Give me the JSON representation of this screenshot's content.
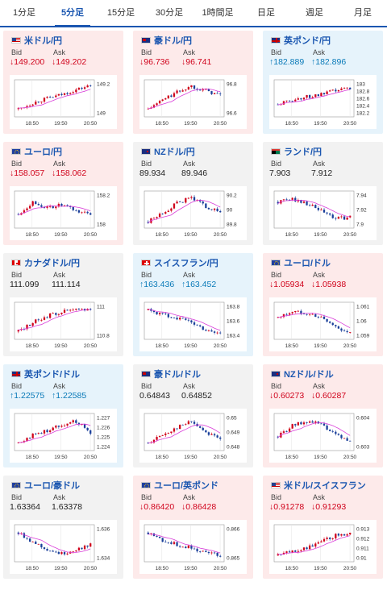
{
  "tabs": [
    {
      "label": "1分足",
      "active": false
    },
    {
      "label": "5分足",
      "active": true
    },
    {
      "label": "15分足",
      "active": false
    },
    {
      "label": "30分足",
      "active": false
    },
    {
      "label": "1時間足",
      "active": false
    },
    {
      "label": "日足",
      "active": false
    },
    {
      "label": "週足",
      "active": false
    },
    {
      "label": "月足",
      "active": false
    }
  ],
  "labels": {
    "bid": "Bid",
    "ask": "Ask"
  },
  "colors": {
    "up_candle": "#d0021b",
    "down_candle": "#1a3f9a",
    "ma_line": "#d93dd9",
    "up_text": "#0a7ab8",
    "down_text": "#d0021b"
  },
  "pairs": [
    {
      "name": "米ドル/円",
      "flag": "us-jp",
      "dir": "down",
      "bid": "149.200",
      "ask": "149.202",
      "bid_arrow": "↓",
      "ask_arrow": "↓",
      "y_ticks": [
        "149.2",
        "149"
      ],
      "x_ticks": [
        "18:50",
        "19:50",
        "20:50"
      ],
      "trend": [
        0.15,
        0.35,
        0.5,
        0.62,
        0.78,
        0.92
      ]
    },
    {
      "name": "豪ドル/円",
      "flag": "au-jp",
      "dir": "down",
      "bid": "96.736",
      "ask": "96.741",
      "bid_arrow": "↓",
      "ask_arrow": "↓",
      "y_ticks": [
        "96.8",
        "96.6"
      ],
      "x_ticks": [
        "18:50",
        "19:50",
        "20:50"
      ],
      "trend": [
        0.15,
        0.45,
        0.7,
        0.9,
        0.75,
        0.6
      ]
    },
    {
      "name": "英ポンド/円",
      "flag": "gb-jp",
      "dir": "up",
      "bid": "182.889",
      "ask": "182.896",
      "bid_arrow": "↑",
      "ask_arrow": "↑",
      "y_ticks": [
        "183",
        "182.8",
        "182.6",
        "182.4",
        "182.2"
      ],
      "x_ticks": [
        "18:50",
        "19:50",
        "20:50"
      ],
      "trend": [
        0.3,
        0.45,
        0.55,
        0.62,
        0.75,
        0.85
      ]
    },
    {
      "name": "ユーロ/円",
      "flag": "eu-jp",
      "dir": "down",
      "bid": "158.057",
      "ask": "158.062",
      "bid_arrow": "↓",
      "ask_arrow": "↓",
      "y_ticks": [
        "158.2",
        "158"
      ],
      "x_ticks": [
        "18:50",
        "19:50",
        "20:50"
      ],
      "trend": [
        0.35,
        0.75,
        0.55,
        0.65,
        0.45,
        0.35
      ]
    },
    {
      "name": "NZドル/円",
      "flag": "nz-jp",
      "dir": "flat",
      "bid": "89.934",
      "ask": "89.946",
      "bid_arrow": "",
      "ask_arrow": "",
      "y_ticks": [
        "90.2",
        "90",
        "89.8"
      ],
      "x_ticks": [
        "18:50",
        "19:50",
        "20:50"
      ],
      "trend": [
        0.1,
        0.4,
        0.7,
        0.9,
        0.6,
        0.4
      ]
    },
    {
      "name": "ランド/円",
      "flag": "za-jp",
      "dir": "flat",
      "bid": "7.903",
      "ask": "7.912",
      "bid_arrow": "",
      "ask_arrow": "",
      "y_ticks": [
        "7.94",
        "7.92",
        "7.9"
      ],
      "x_ticks": [
        "18:50",
        "19:50",
        "20:50"
      ],
      "trend": [
        0.75,
        0.85,
        0.7,
        0.45,
        0.2,
        0.25
      ]
    },
    {
      "name": "カナダドル/円",
      "flag": "ca-jp",
      "dir": "flat",
      "bid": "111.099",
      "ask": "111.114",
      "bid_arrow": "",
      "ask_arrow": "",
      "y_ticks": [
        "111",
        "110.8"
      ],
      "x_ticks": [
        "18:50",
        "19:50",
        "20:50"
      ],
      "trend": [
        0.15,
        0.45,
        0.65,
        0.8,
        0.85,
        0.9
      ]
    },
    {
      "name": "スイスフラン/円",
      "flag": "ch-jp",
      "dir": "up",
      "bid": "163.436",
      "ask": "163.452",
      "bid_arrow": "↑",
      "ask_arrow": "↑",
      "y_ticks": [
        "163.8",
        "163.6",
        "163.4"
      ],
      "x_ticks": [
        "18:50",
        "19:50",
        "20:50"
      ],
      "trend": [
        0.85,
        0.7,
        0.6,
        0.45,
        0.2,
        0.1
      ]
    },
    {
      "name": "ユーロ/ドル",
      "flag": "eu-us",
      "dir": "down",
      "bid": "1.05934",
      "ask": "1.05938",
      "bid_arrow": "↓",
      "ask_arrow": "↓",
      "y_ticks": [
        "1.061",
        "1.06",
        "1.059"
      ],
      "x_ticks": [
        "18:50",
        "19:50",
        "20:50"
      ],
      "trend": [
        0.6,
        0.8,
        0.75,
        0.6,
        0.3,
        0.1
      ]
    },
    {
      "name": "英ポンド/ドル",
      "flag": "gb-us",
      "dir": "up",
      "bid": "1.22575",
      "ask": "1.22585",
      "bid_arrow": "↑",
      "ask_arrow": "↑",
      "y_ticks": [
        "1.227",
        "1.226",
        "1.225",
        "1.224"
      ],
      "x_ticks": [
        "18:50",
        "19:50",
        "20:50"
      ],
      "trend": [
        0.15,
        0.4,
        0.55,
        0.75,
        0.85,
        0.5
      ]
    },
    {
      "name": "豪ドル/ドル",
      "flag": "au-us",
      "dir": "flat",
      "bid": "0.64843",
      "ask": "0.64852",
      "bid_arrow": "",
      "ask_arrow": "",
      "y_ticks": [
        "0.65",
        "0.649",
        "0.648"
      ],
      "x_ticks": [
        "18:50",
        "19:50",
        "20:50"
      ],
      "trend": [
        0.15,
        0.4,
        0.65,
        0.85,
        0.5,
        0.3
      ]
    },
    {
      "name": "NZドル/ドル",
      "flag": "nz-us",
      "dir": "down",
      "bid": "0.60273",
      "ask": "0.60287",
      "bid_arrow": "↓",
      "ask_arrow": "↓",
      "y_ticks": [
        "0.604",
        "0.603"
      ],
      "x_ticks": [
        "18:50",
        "19:50",
        "20:50"
      ],
      "trend": [
        0.35,
        0.7,
        0.85,
        0.75,
        0.4,
        0.2
      ]
    },
    {
      "name": "ユーロ/豪ドル",
      "flag": "eu-au",
      "dir": "flat",
      "bid": "1.63364",
      "ask": "1.63378",
      "bid_arrow": "",
      "ask_arrow": "",
      "y_ticks": [
        "1.636",
        "1.634"
      ],
      "x_ticks": [
        "18:50",
        "19:50",
        "20:50"
      ],
      "trend": [
        0.85,
        0.55,
        0.3,
        0.15,
        0.3,
        0.45
      ]
    },
    {
      "name": "ユーロ/英ポンド",
      "flag": "eu-gb",
      "dir": "down",
      "bid": "0.86420",
      "ask": "0.86428",
      "bid_arrow": "↓",
      "ask_arrow": "↓",
      "y_ticks": [
        "0.866",
        "0.865"
      ],
      "x_ticks": [
        "18:50",
        "19:50",
        "20:50"
      ],
      "trend": [
        0.85,
        0.6,
        0.45,
        0.35,
        0.2,
        0.1
      ]
    },
    {
      "name": "米ドル/スイスフラン",
      "flag": "us-ch",
      "dir": "down",
      "bid": "0.91278",
      "ask": "0.91293",
      "bid_arrow": "↓",
      "ask_arrow": "↓",
      "y_ticks": [
        "0.913",
        "0.912",
        "0.911",
        "0.91"
      ],
      "x_ticks": [
        "18:50",
        "19:50",
        "20:50"
      ],
      "trend": [
        0.1,
        0.25,
        0.35,
        0.55,
        0.75,
        0.85
      ]
    }
  ]
}
